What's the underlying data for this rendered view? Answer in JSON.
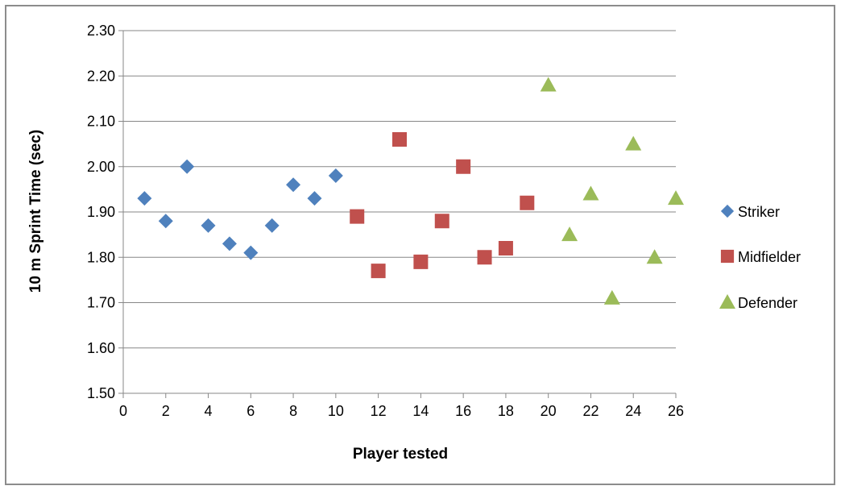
{
  "chart_data": {
    "type": "scatter",
    "xlabel": "Player tested",
    "ylabel": "10 m Sprint Time (sec)",
    "xlim": [
      0,
      26
    ],
    "ylim": [
      1.5,
      2.3
    ],
    "x_ticks": [
      "0",
      "2",
      "4",
      "6",
      "8",
      "10",
      "12",
      "14",
      "16",
      "18",
      "20",
      "22",
      "24",
      "26"
    ],
    "y_ticks": [
      "1.50",
      "1.60",
      "1.70",
      "1.80",
      "1.90",
      "2.00",
      "2.10",
      "2.20",
      "2.30"
    ],
    "grid": "horizontal",
    "legend_position": "right",
    "series": [
      {
        "name": "Striker",
        "marker": "diamond",
        "color": "#4F81BD",
        "points": [
          [
            1,
            1.93
          ],
          [
            2,
            1.88
          ],
          [
            3,
            2.0
          ],
          [
            4,
            1.87
          ],
          [
            5,
            1.83
          ],
          [
            6,
            1.81
          ],
          [
            7,
            1.87
          ],
          [
            8,
            1.96
          ],
          [
            9,
            1.93
          ],
          [
            10,
            1.98
          ]
        ]
      },
      {
        "name": "Midfielder",
        "marker": "square",
        "color": "#C0504D",
        "points": [
          [
            11,
            1.89
          ],
          [
            12,
            1.77
          ],
          [
            13,
            2.06
          ],
          [
            14,
            1.79
          ],
          [
            15,
            1.88
          ],
          [
            16,
            2.0
          ],
          [
            17,
            1.8
          ],
          [
            18,
            1.82
          ],
          [
            19,
            1.92
          ]
        ]
      },
      {
        "name": "Defender",
        "marker": "triangle",
        "color": "#9BBB59",
        "points": [
          [
            20,
            2.18
          ],
          [
            21,
            1.85
          ],
          [
            22,
            1.94
          ],
          [
            23,
            1.71
          ],
          [
            24,
            2.05
          ],
          [
            25,
            1.8
          ],
          [
            26,
            1.93
          ]
        ]
      }
    ]
  }
}
